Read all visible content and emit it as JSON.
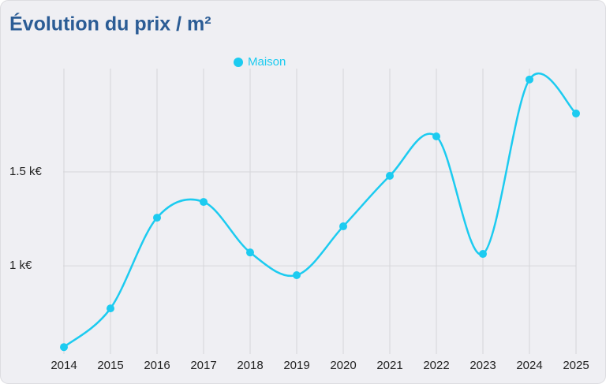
{
  "chart_data": {
    "type": "line",
    "title": "Évolution du prix / m²",
    "categories": [
      "2014",
      "2015",
      "2016",
      "2017",
      "2018",
      "2019",
      "2020",
      "2021",
      "2022",
      "2023",
      "2024",
      "2025"
    ],
    "series": [
      {
        "name": "Maison",
        "color": "#1ccbf0",
        "values": [
          567,
          773,
          1256,
          1340,
          1071,
          950,
          1210,
          1479,
          1689,
          1063,
          1992,
          1811
        ]
      }
    ],
    "ylim": [
      530,
      2050
    ],
    "yticks": [
      {
        "value": 1000,
        "label": "1 k€"
      },
      {
        "value": 1500,
        "label": "1.5 k€"
      }
    ],
    "grid": true,
    "smooth": true,
    "legend": "top"
  }
}
